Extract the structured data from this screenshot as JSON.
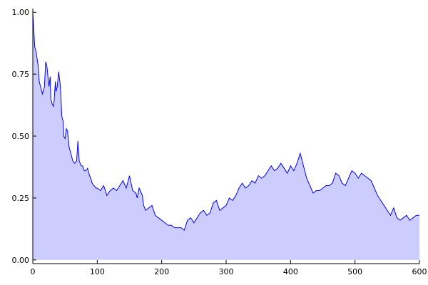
{
  "chart_data": {
    "type": "area",
    "title": "",
    "xlabel": "",
    "ylabel": "",
    "xlim": [
      0,
      600
    ],
    "ylim": [
      -0.015,
      1.015
    ],
    "xticks": [
      0,
      100,
      200,
      300,
      400,
      500,
      600
    ],
    "xtick_labels": [
      "0",
      "100",
      "200",
      "300",
      "400",
      "500",
      "600"
    ],
    "yticks": [
      0,
      0.25,
      0.5,
      0.75,
      1.0
    ],
    "ytick_labels": [
      "0.00",
      "0.25",
      "0.50",
      "0.75",
      "1.00"
    ],
    "grid": false,
    "legend": "none",
    "colors": {
      "line": "#0000ff",
      "fill": "#ccccff"
    },
    "series": [
      {
        "x": [
          0,
          3,
          5,
          8,
          10,
          12,
          15,
          18,
          20,
          22,
          25,
          27,
          28,
          30,
          32,
          33,
          35,
          36,
          38,
          40,
          42,
          43,
          45,
          47,
          48,
          50,
          52,
          54,
          56,
          58,
          60,
          62,
          65,
          68,
          70,
          72,
          75,
          77,
          80,
          82,
          85,
          88,
          90,
          92,
          95,
          98,
          100,
          105,
          110,
          115,
          120,
          125,
          130,
          135,
          140,
          145,
          150,
          155,
          160,
          162,
          165,
          170,
          172,
          175,
          180,
          185,
          190,
          195,
          200,
          205,
          210,
          215,
          220,
          225,
          230,
          235,
          240,
          245,
          250,
          255,
          260,
          265,
          270,
          275,
          280,
          285,
          290,
          295,
          300,
          305,
          310,
          315,
          320,
          325,
          330,
          335,
          340,
          345,
          350,
          355,
          360,
          365,
          370,
          375,
          380,
          385,
          390,
          395,
          400,
          405,
          410,
          415,
          420,
          425,
          430,
          435,
          440,
          445,
          450,
          455,
          460,
          465,
          470,
          475,
          480,
          485,
          490,
          495,
          500,
          505,
          510,
          515,
          520,
          525,
          530,
          535,
          540,
          545,
          550,
          555,
          560,
          565,
          570,
          575,
          580,
          585,
          590,
          595,
          600
        ],
        "y": [
          1.0,
          0.86,
          0.84,
          0.79,
          0.72,
          0.7,
          0.67,
          0.7,
          0.8,
          0.78,
          0.7,
          0.74,
          0.65,
          0.63,
          0.62,
          0.64,
          0.72,
          0.68,
          0.7,
          0.76,
          0.72,
          0.69,
          0.58,
          0.56,
          0.5,
          0.49,
          0.53,
          0.52,
          0.46,
          0.44,
          0.42,
          0.4,
          0.39,
          0.4,
          0.48,
          0.4,
          0.38,
          0.38,
          0.36,
          0.36,
          0.37,
          0.34,
          0.33,
          0.31,
          0.3,
          0.29,
          0.29,
          0.28,
          0.3,
          0.26,
          0.28,
          0.29,
          0.28,
          0.3,
          0.32,
          0.29,
          0.34,
          0.28,
          0.27,
          0.25,
          0.29,
          0.26,
          0.22,
          0.2,
          0.21,
          0.22,
          0.18,
          0.17,
          0.16,
          0.15,
          0.14,
          0.14,
          0.13,
          0.13,
          0.13,
          0.12,
          0.16,
          0.17,
          0.15,
          0.17,
          0.19,
          0.2,
          0.18,
          0.19,
          0.23,
          0.24,
          0.2,
          0.21,
          0.22,
          0.25,
          0.24,
          0.26,
          0.29,
          0.31,
          0.29,
          0.3,
          0.32,
          0.31,
          0.34,
          0.33,
          0.34,
          0.36,
          0.38,
          0.36,
          0.37,
          0.39,
          0.37,
          0.35,
          0.38,
          0.36,
          0.39,
          0.43,
          0.38,
          0.33,
          0.3,
          0.27,
          0.28,
          0.28,
          0.29,
          0.3,
          0.3,
          0.31,
          0.35,
          0.34,
          0.31,
          0.3,
          0.33,
          0.36,
          0.35,
          0.33,
          0.35,
          0.34,
          0.33,
          0.32,
          0.29,
          0.26,
          0.24,
          0.22,
          0.2,
          0.18,
          0.21,
          0.17,
          0.16,
          0.17,
          0.18,
          0.16,
          0.17,
          0.18,
          0.18
        ]
      }
    ]
  }
}
